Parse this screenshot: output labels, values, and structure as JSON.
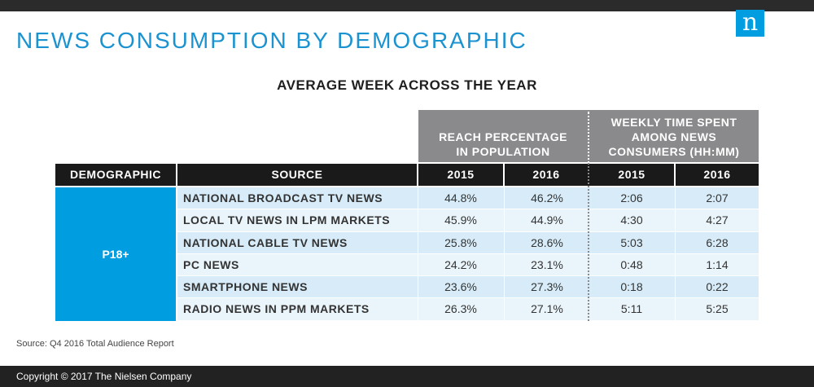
{
  "title": "NEWS CONSUMPTION BY DEMOGRAPHIC",
  "logo_letter": "n",
  "chart_data": {
    "type": "table",
    "subtitle": "AVERAGE WEEK ACROSS THE YEAR",
    "column_groups": [
      {
        "label": "REACH PERCENTAGE IN POPULATION",
        "years": [
          "2015",
          "2016"
        ]
      },
      {
        "label": "WEEKLY TIME SPENT AMONG NEWS CONSUMERS (HH:MM)",
        "years": [
          "2015",
          "2016"
        ]
      }
    ],
    "headers": {
      "demographic": "DEMOGRAPHIC",
      "source": "SOURCE",
      "y1": "2015",
      "y2": "2016",
      "y3": "2015",
      "y4": "2016"
    },
    "demographic": "P18+",
    "rows": [
      {
        "source": "NATIONAL BROADCAST TV NEWS",
        "reach_2015": "44.8%",
        "reach_2016": "46.2%",
        "time_2015": "2:06",
        "time_2016": "2:07"
      },
      {
        "source": "LOCAL TV NEWS IN LPM MARKETS",
        "reach_2015": "45.9%",
        "reach_2016": "44.9%",
        "time_2015": "4:30",
        "time_2016": "4:27"
      },
      {
        "source": "NATIONAL CABLE TV NEWS",
        "reach_2015": "25.8%",
        "reach_2016": "28.6%",
        "time_2015": "5:03",
        "time_2016": "6:28"
      },
      {
        "source": "PC NEWS",
        "reach_2015": "24.2%",
        "reach_2016": "23.1%",
        "time_2015": "0:48",
        "time_2016": "1:14"
      },
      {
        "source": "SMARTPHONE NEWS",
        "reach_2015": "23.6%",
        "reach_2016": "27.3%",
        "time_2015": "0:18",
        "time_2016": "0:22"
      },
      {
        "source": "RADIO NEWS IN PPM MARKETS",
        "reach_2015": "26.3%",
        "reach_2016": "27.1%",
        "time_2015": "5:11",
        "time_2016": "5:25"
      }
    ]
  },
  "source_note": "Source: Q4 2016 Total Audience Report",
  "footer": "Copyright © 2017 The Nielsen Company",
  "colors": {
    "brand_blue": "#009ee0",
    "title_blue": "#1b93d1",
    "header_gray": "#8a8a8c",
    "header_black": "#1a1a1a"
  }
}
